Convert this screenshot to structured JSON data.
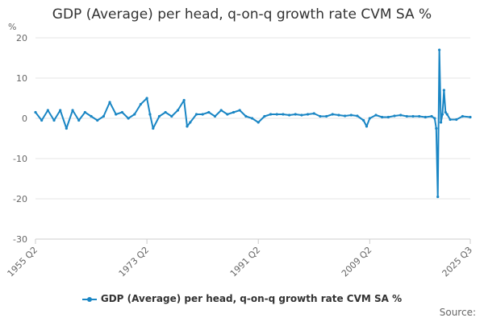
{
  "chart_data": {
    "type": "line",
    "title": "GDP (Average) per head, q-on-q growth rate CVM SA %",
    "ylabel": "%",
    "xlabel": "",
    "ylim": [
      -30,
      20
    ],
    "yticks": [
      20,
      10,
      0,
      -10,
      -20,
      -30
    ],
    "xticks": [
      "1955 Q2",
      "1973 Q2",
      "1991 Q2",
      "2009 Q2",
      "2025 Q3"
    ],
    "grid": true,
    "legend_position": "bottom",
    "series": [
      {
        "name": "GDP (Average) per head, q-on-q growth rate CVM SA %",
        "color": "#1a86c4",
        "x": [
          "1955 Q2",
          "1956 Q2",
          "1957 Q2",
          "1958 Q2",
          "1959 Q2",
          "1960 Q2",
          "1961 Q2",
          "1962 Q2",
          "1963 Q2",
          "1964 Q2",
          "1965 Q2",
          "1966 Q2",
          "1967 Q2",
          "1968 Q2",
          "1969 Q2",
          "1970 Q2",
          "1971 Q2",
          "1972 Q2",
          "1973 Q2",
          "1973 Q4",
          "1974 Q2",
          "1975 Q2",
          "1976 Q2",
          "1977 Q2",
          "1978 Q2",
          "1979 Q2",
          "1979 Q4",
          "1980 Q2",
          "1981 Q2",
          "1982 Q2",
          "1983 Q2",
          "1984 Q2",
          "1985 Q2",
          "1986 Q2",
          "1987 Q2",
          "1988 Q2",
          "1989 Q2",
          "1990 Q2",
          "1991 Q2",
          "1992 Q2",
          "1993 Q2",
          "1994 Q2",
          "1995 Q2",
          "1996 Q2",
          "1997 Q2",
          "1998 Q2",
          "1999 Q2",
          "2000 Q2",
          "2001 Q2",
          "2002 Q2",
          "2003 Q2",
          "2004 Q2",
          "2005 Q2",
          "2006 Q2",
          "2007 Q2",
          "2008 Q2",
          "2008 Q4",
          "2009 Q2",
          "2010 Q2",
          "2011 Q2",
          "2012 Q2",
          "2013 Q2",
          "2014 Q2",
          "2015 Q2",
          "2016 Q2",
          "2017 Q2",
          "2018 Q2",
          "2019 Q2",
          "2019 Q4",
          "2020 Q1",
          "2020 Q2",
          "2020 Q3",
          "2020 Q4",
          "2021 Q1",
          "2021 Q2",
          "2021 Q3",
          "2021 Q4",
          "2022 Q2",
          "2023 Q2",
          "2024 Q2",
          "2025 Q3"
        ],
        "values": [
          1.5,
          -0.5,
          2,
          -0.5,
          2,
          -2.5,
          2,
          -0.5,
          1.5,
          0.5,
          -0.5,
          0.5,
          4,
          1,
          1.5,
          0,
          1,
          3.5,
          5,
          1,
          -2.5,
          0.5,
          1.5,
          0.5,
          2,
          4.5,
          -2,
          -1,
          1,
          1,
          1.5,
          0.5,
          2,
          1,
          1.5,
          2,
          0.5,
          0,
          -1,
          0.5,
          1,
          1,
          1,
          0.8,
          1,
          0.8,
          1,
          1.2,
          0.5,
          0.5,
          1,
          0.8,
          0.6,
          0.8,
          0.6,
          -0.5,
          -2,
          0,
          0.8,
          0.3,
          0.3,
          0.6,
          0.8,
          0.5,
          0.5,
          0.5,
          0.3,
          0.5,
          0,
          -2.5,
          -19.5,
          17,
          -1,
          1,
          7,
          1.5,
          1,
          -0.3,
          -0.3,
          0.5,
          0.3
        ]
      }
    ]
  },
  "source_label": "Source:"
}
